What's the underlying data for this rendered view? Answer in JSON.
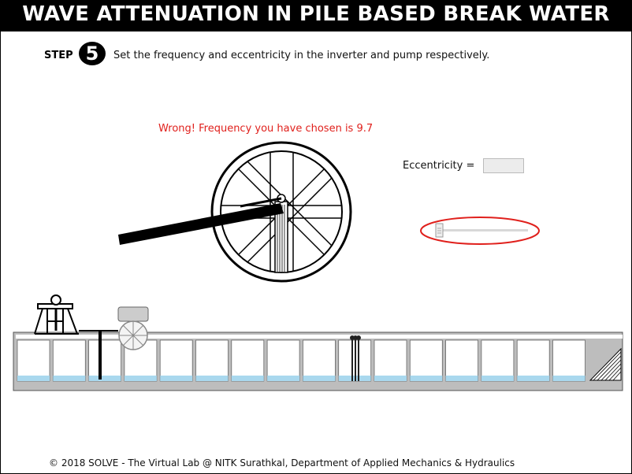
{
  "header": {
    "title": "WAVE ATTENUATION IN PILE BASED BREAK WATER"
  },
  "step": {
    "label": "STEP",
    "number": "5",
    "instruction": "Set the frequency and eccentricity in the inverter and pump respectively."
  },
  "feedback": {
    "message": "Wrong! Frequency you have chosen is 9.7"
  },
  "eccentricity": {
    "label": "Eccentricity  =",
    "value": ""
  },
  "slider": {
    "value_fraction": 0.0
  },
  "footer": {
    "text": "© 2018 SOLVE - The Virtual Lab @ NITK Surathkal, Department of Applied Mechanics & Hydraulics"
  },
  "colors": {
    "water": "#a9d8ee",
    "error": "#e0201c",
    "highlight_ring": "#e0201c"
  }
}
